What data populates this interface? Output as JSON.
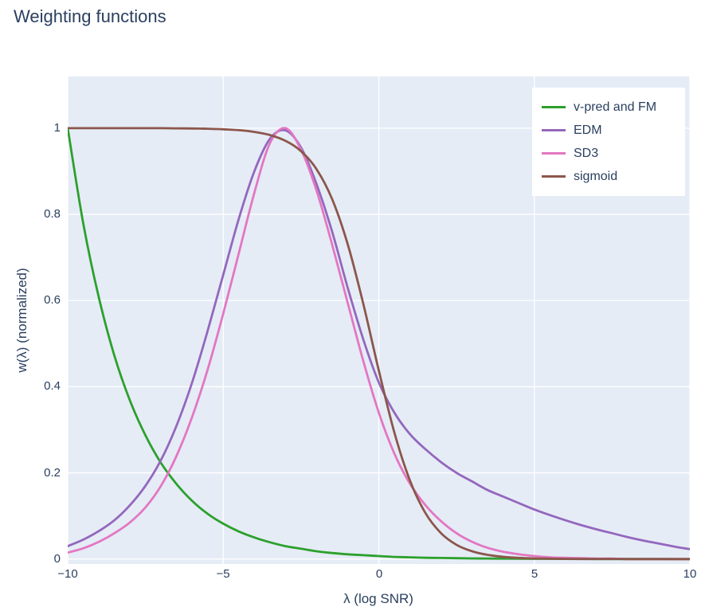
{
  "chart_data": {
    "type": "line",
    "title": "Weighting functions",
    "xlabel": "λ (log SNR)",
    "ylabel": "w(λ) (normalized)",
    "xlim": [
      -10,
      10
    ],
    "ylim": [
      -0.0115,
      1.12
    ],
    "grid": true,
    "plot_background": "#e5ecf6",
    "grid_color": "#ffffff",
    "text_color": "#2a3f5f",
    "legend_position": "top-right",
    "xticks": [
      -10,
      -5,
      0,
      5,
      10
    ],
    "xtick_labels": [
      "−10",
      "−5",
      "0",
      "5",
      "10"
    ],
    "yticks": [
      0,
      0.2,
      0.4,
      0.6,
      0.8,
      1
    ],
    "ytick_labels": [
      "0",
      "0.2",
      "0.4",
      "0.6",
      "0.8",
      "1"
    ],
    "x": [
      -10,
      -9.5,
      -9,
      -8.5,
      -8,
      -7.5,
      -7,
      -6.5,
      -6,
      -5.5,
      -5,
      -4.5,
      -4,
      -3.5,
      -3,
      -2.5,
      -2,
      -1.5,
      -1,
      -0.5,
      0,
      0.5,
      1,
      1.5,
      2,
      2.5,
      3,
      3.5,
      4,
      4.5,
      5,
      5.5,
      6,
      6.5,
      7,
      7.5,
      8,
      8.5,
      9,
      9.5,
      10
    ],
    "series": [
      {
        "name": "v-pred and FM",
        "color": "#2ca02c",
        "values": [
          1.0,
          0.779,
          0.607,
          0.472,
          0.368,
          0.287,
          0.223,
          0.174,
          0.135,
          0.105,
          0.082,
          0.064,
          0.05,
          0.039,
          0.03,
          0.024,
          0.018,
          0.014,
          0.011,
          0.009,
          0.007,
          0.005,
          0.004,
          0.003,
          0.0025,
          0.002,
          0.0015,
          0.0012,
          0.001,
          0.0008,
          0.0006,
          0.0005,
          0.0004,
          0.0003,
          0.0002,
          0.0002,
          0.0001,
          0.0001,
          0.0001,
          0.0,
          0.0
        ]
      },
      {
        "name": "EDM",
        "color": "#9467bd",
        "values": [
          0.03,
          0.045,
          0.065,
          0.09,
          0.125,
          0.17,
          0.23,
          0.31,
          0.41,
          0.53,
          0.66,
          0.79,
          0.9,
          0.975,
          0.995,
          0.955,
          0.87,
          0.76,
          0.63,
          0.51,
          0.41,
          0.34,
          0.29,
          0.255,
          0.225,
          0.2,
          0.18,
          0.16,
          0.145,
          0.13,
          0.115,
          0.102,
          0.09,
          0.079,
          0.069,
          0.06,
          0.051,
          0.043,
          0.036,
          0.029,
          0.023
        ]
      },
      {
        "name": "SD3",
        "color": "#e377c2",
        "values": [
          0.015,
          0.025,
          0.04,
          0.06,
          0.085,
          0.12,
          0.17,
          0.24,
          0.33,
          0.44,
          0.57,
          0.71,
          0.85,
          0.965,
          1.0,
          0.95,
          0.855,
          0.73,
          0.595,
          0.46,
          0.34,
          0.245,
          0.175,
          0.125,
          0.088,
          0.06,
          0.04,
          0.026,
          0.017,
          0.011,
          0.007,
          0.004,
          0.003,
          0.002,
          0.001,
          0.001,
          0.0,
          0.0,
          0.0,
          0.0,
          0.0
        ]
      },
      {
        "name": "sigmoid",
        "color": "#8c564b",
        "values": [
          1.0,
          1.0,
          1.0,
          1.0,
          1.0,
          1.0,
          1.0,
          0.9996,
          0.9993,
          0.9987,
          0.9975,
          0.9954,
          0.9914,
          0.9841,
          0.9707,
          0.9466,
          0.9047,
          0.8355,
          0.7311,
          0.5927,
          0.4378,
          0.2942,
          0.1824,
          0.1067,
          0.0601,
          0.0331,
          0.018,
          0.0097,
          0.0052,
          0.0028,
          0.0015,
          0.0008,
          0.0004,
          0.0002,
          0.0001,
          0.0001,
          0.0,
          0.0,
          0.0,
          0.0,
          0.0
        ]
      }
    ]
  }
}
